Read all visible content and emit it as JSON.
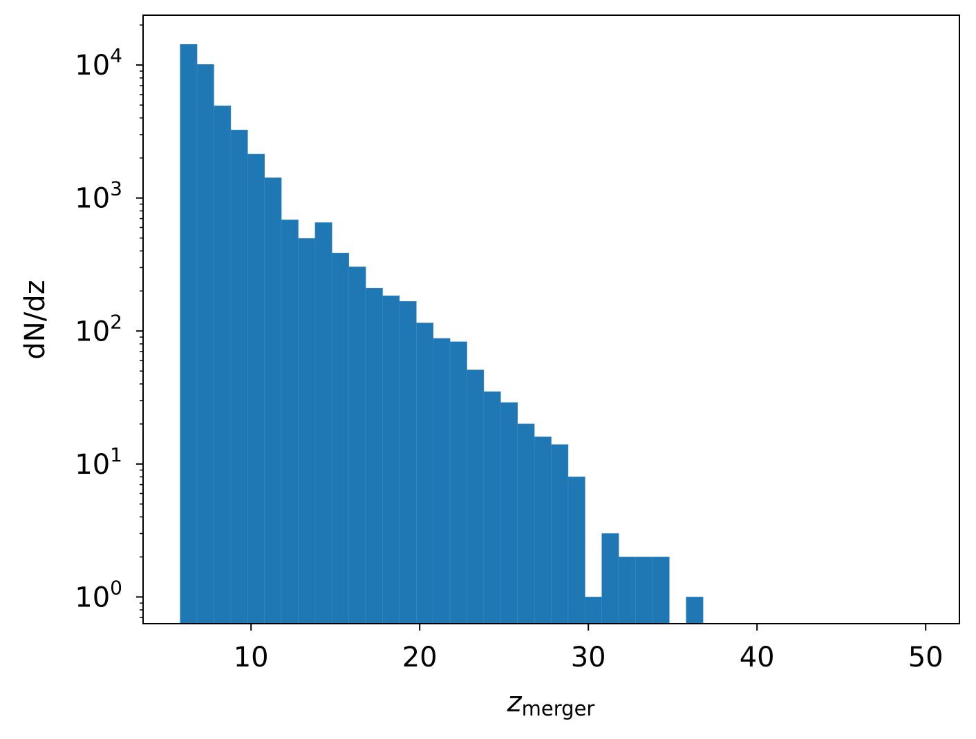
{
  "chart_data": {
    "type": "bar",
    "subtype": "histogram",
    "xlabel": "z",
    "xlabel_subscript": "merger",
    "ylabel": "dN/dz",
    "yscale": "log",
    "xlim": [
      3.6,
      52.0
    ],
    "ylim": [
      0.63,
      23700
    ],
    "grid": false,
    "color": "#1f77b4",
    "x_ticks": [
      10,
      20,
      30,
      40,
      50
    ],
    "x_tick_labels": [
      "10",
      "20",
      "30",
      "40",
      "50"
    ],
    "y_ticks": [
      1,
      10,
      100,
      1000,
      10000
    ],
    "y_tick_labels": [
      {
        "base": "10",
        "exp": "0"
      },
      {
        "base": "10",
        "exp": "1"
      },
      {
        "base": "10",
        "exp": "2"
      },
      {
        "base": "10",
        "exp": "3"
      },
      {
        "base": "10",
        "exp": "4"
      }
    ],
    "bin_edges": [
      5.8,
      6.8,
      7.8,
      8.8,
      9.8,
      10.8,
      11.8,
      12.8,
      13.8,
      14.8,
      15.8,
      16.8,
      17.8,
      18.8,
      19.8,
      20.8,
      21.8,
      22.8,
      23.8,
      24.8,
      25.8,
      26.8,
      27.8,
      28.8,
      29.8,
      30.8,
      31.8,
      32.8,
      33.8,
      34.8,
      35.8,
      36.8
    ],
    "values": [
      14300,
      10100,
      4940,
      3250,
      2140,
      1420,
      686,
      497,
      654,
      386,
      304,
      210,
      184,
      167,
      115,
      88,
      83,
      51,
      35,
      29,
      20,
      16,
      14,
      8,
      1,
      3,
      2,
      2,
      2,
      0,
      1
    ]
  }
}
